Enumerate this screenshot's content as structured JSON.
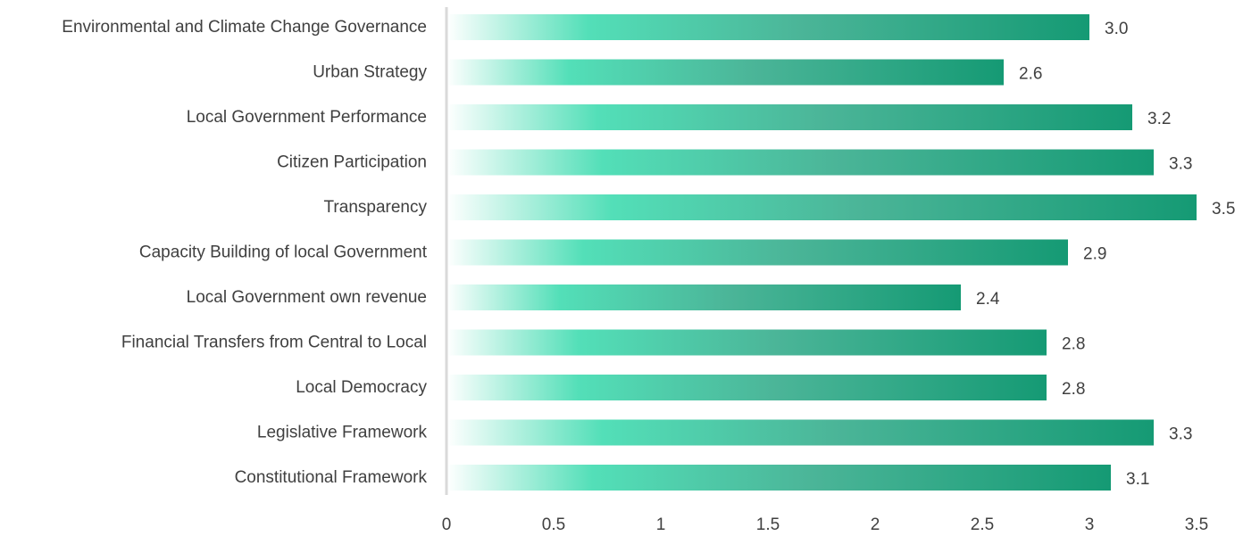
{
  "chart_data": {
    "type": "bar",
    "orientation": "horizontal",
    "title": "",
    "xlabel": "",
    "ylabel": "",
    "categories": [
      "Environmental and Climate Change Governance",
      "Urban Strategy",
      "Local Government Performance",
      "Citizen Participation",
      "Transparency",
      "Capacity Building of local Government",
      "Local Government own revenue",
      "Financial Transfers from Central to Local",
      "Local Democracy",
      "Legislative Framework",
      "Constitutional Framework"
    ],
    "values": [
      3.0,
      2.6,
      3.2,
      3.3,
      3.5,
      2.9,
      2.4,
      2.8,
      2.8,
      3.3,
      3.1
    ],
    "value_labels": [
      "3.0",
      "2.6",
      "3.2",
      "3.3",
      "3.5",
      "2.9",
      "2.4",
      "2.8",
      "2.8",
      "3.3",
      "3.1"
    ],
    "xlim": [
      0,
      3.5
    ],
    "x_ticks": [
      "0",
      "0.5",
      "1",
      "1.5",
      "2",
      "2.5",
      "3",
      "3.5"
    ],
    "grid": false,
    "legend": "none",
    "bar_colors": {
      "fade_start": "#ffffff",
      "bright": "#53dfb8",
      "middle": "#4bb598",
      "end": "#159a74"
    },
    "text_color": "#404040",
    "axis_color": "#d9d9d9"
  }
}
